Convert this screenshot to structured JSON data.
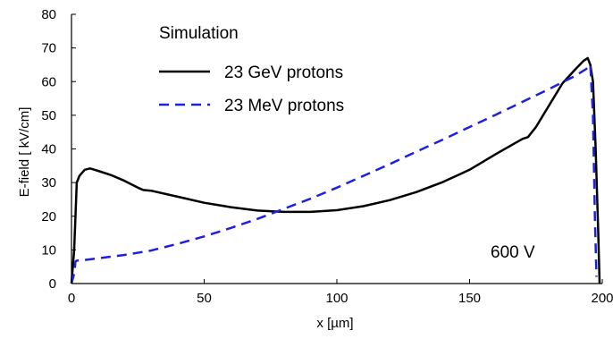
{
  "chart_data": {
    "type": "line",
    "title": "",
    "xlabel": "x [µm]",
    "ylabel": "E-field  [ kV/cm]",
    "xlim": [
      0,
      200
    ],
    "ylim": [
      0,
      80
    ],
    "xticks": [
      0,
      50,
      100,
      150,
      200
    ],
    "yticks": [
      0,
      10,
      20,
      30,
      40,
      50,
      60,
      70,
      80
    ],
    "xtick_labels": [
      "0",
      "50",
      "100",
      "150",
      "200"
    ],
    "ytick_labels": [
      "0",
      "10",
      "20",
      "30",
      "40",
      "50",
      "60",
      "70",
      "80"
    ],
    "grid": false,
    "legend": {
      "title": "Simulation",
      "position": "top-left",
      "entries": [
        "23 GeV protons",
        "23 MeV protons"
      ]
    },
    "annotations": [
      {
        "text": "600 V",
        "x": 175,
        "y": 9
      }
    ],
    "series": [
      {
        "name": "23 GeV protons",
        "color": "#000000",
        "dash": "solid",
        "x": [
          0,
          1,
          2,
          3,
          5,
          7,
          10,
          15,
          20,
          25,
          27,
          30,
          40,
          50,
          60,
          70,
          80,
          90,
          100,
          110,
          120,
          130,
          140,
          150,
          160,
          170,
          172,
          175,
          180,
          185,
          190,
          193,
          194.5,
          195.5,
          196.5,
          197.5,
          198.5,
          199
        ],
        "values": [
          0,
          10,
          30,
          32,
          33.8,
          34.2,
          33.5,
          32.2,
          30.5,
          28.5,
          27.8,
          27.6,
          25.8,
          24,
          22.7,
          21.7,
          21.3,
          21.3,
          21.8,
          23,
          24.8,
          27.2,
          30.2,
          33.8,
          38.5,
          43,
          43.5,
          46.5,
          53,
          59.5,
          63.8,
          66.2,
          67,
          65,
          60,
          40,
          15,
          0
        ]
      },
      {
        "name": "23 MeV protons",
        "color": "#1f1fe0",
        "dash": "dashed",
        "x": [
          0,
          1,
          1.5,
          2,
          5,
          10,
          20,
          30,
          40,
          50,
          60,
          70,
          80,
          90,
          100,
          110,
          120,
          130,
          140,
          150,
          160,
          170,
          180,
          190,
          194,
          195.5,
          196.5,
          197.2,
          197.8
        ],
        "values": [
          0,
          3,
          6.5,
          6.8,
          7,
          7.5,
          8.5,
          9.8,
          11.8,
          14,
          16.5,
          19.2,
          22.2,
          25.2,
          28.5,
          32,
          35.5,
          39.2,
          42.8,
          46.5,
          50.2,
          54,
          57.8,
          61.8,
          63.8,
          65,
          50,
          20,
          2
        ]
      }
    ]
  }
}
